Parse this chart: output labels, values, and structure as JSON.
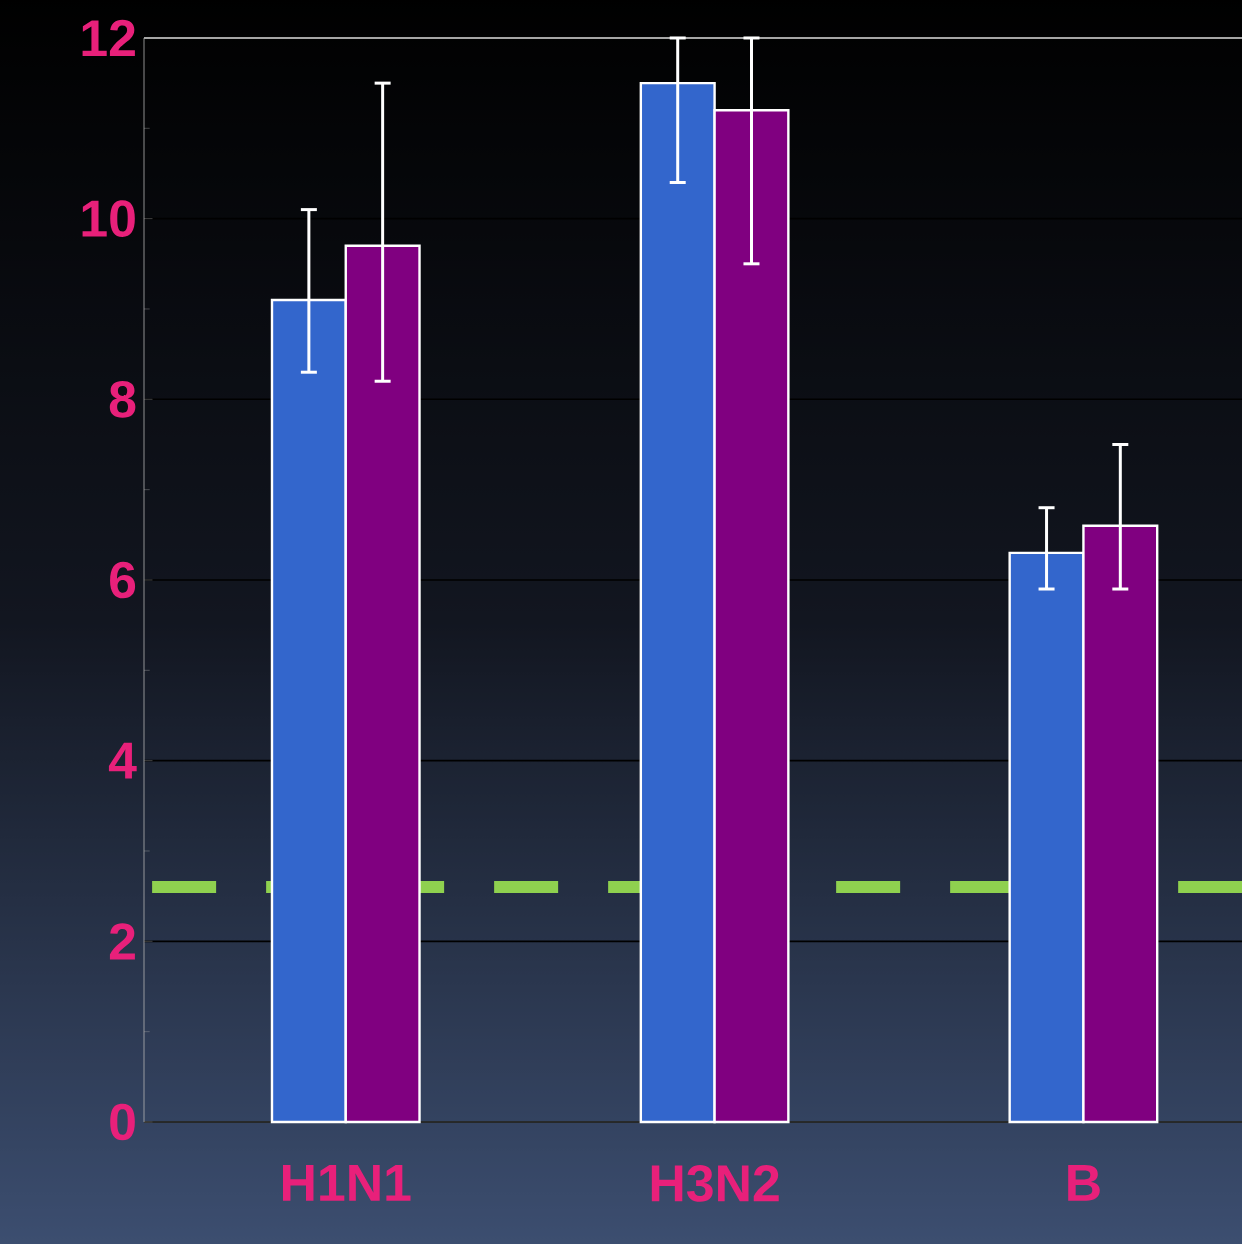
{
  "chart_data": {
    "type": "bar",
    "categories": [
      "H1N1",
      "H3N2",
      "B"
    ],
    "series": [
      {
        "color": "#3366cc",
        "values": [
          9.1,
          11.5,
          6.3
        ],
        "errors": [
          [
            8.3,
            10.1
          ],
          [
            10.4,
            12
          ],
          [
            5.9,
            6.8
          ]
        ]
      },
      {
        "color": "#800080",
        "values": [
          9.7,
          11.2,
          6.6
        ],
        "errors": [
          [
            8.2,
            11.5
          ],
          [
            9.5,
            12
          ],
          [
            5.9,
            7.5
          ]
        ]
      }
    ],
    "ylim": [
      0,
      12
    ],
    "yticks": [
      0,
      2,
      4,
      6,
      8,
      10,
      12
    ],
    "grid": "y",
    "ref_lines": [
      {
        "axis": "y",
        "value": 2.6,
        "color": "#8fd14f",
        "line_style": "dashed"
      }
    ]
  }
}
